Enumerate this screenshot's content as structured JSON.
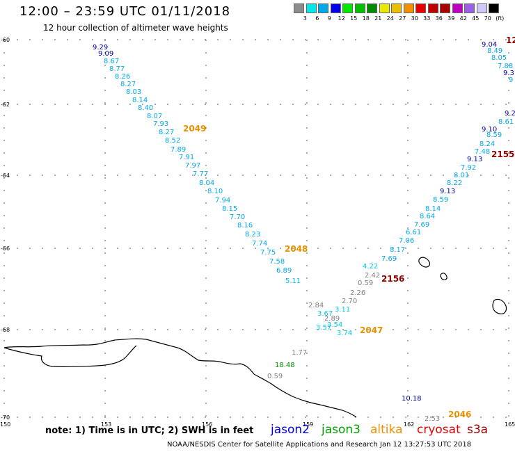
{
  "header": {
    "title": "12:00 – 23:59 UTC 01/11/2018",
    "subtitle": "12 hour collection of altimeter wave heights"
  },
  "colorbar": {
    "colors": [
      "#8c8c8c",
      "#00e8e8",
      "#00a8e8",
      "#0000e8",
      "#00e800",
      "#00c000",
      "#008c00",
      "#e8e800",
      "#e8c000",
      "#f09000",
      "#e80000",
      "#c00000",
      "#a80000",
      "#c000c0",
      "#9c60e8",
      "#d0c8f8",
      "#000000"
    ],
    "labels": [
      "3",
      "6",
      "9",
      "12",
      "15",
      "18",
      "21",
      "24",
      "27",
      "30",
      "33",
      "36",
      "39",
      "42",
      "45",
      "70",
      "(ft)"
    ]
  },
  "axes": {
    "lat_labels": [
      "-60",
      "-62",
      "-64",
      "-66",
      "-68",
      "-70"
    ],
    "lon_labels": [
      "150",
      "153",
      "156",
      "159",
      "162",
      "165"
    ]
  },
  "tracks": [
    {
      "orbit": "2049",
      "color": "#e89000"
    },
    {
      "orbit": "2048",
      "color": "#e89000"
    },
    {
      "orbit": "2047",
      "color": "#e89000"
    },
    {
      "orbit": "2046",
      "color": "#e89000"
    },
    {
      "orbit": "2156",
      "color": "#8c0000"
    },
    {
      "orbit": "2155",
      "color": "#8c0000"
    },
    {
      "orbit": "12",
      "color": "#8c0000"
    }
  ],
  "points": [
    {
      "v": "9.29",
      "c": "#0000a0"
    },
    {
      "v": "9.09",
      "c": "#0000a0"
    },
    {
      "v": "8.67",
      "c": "#00a8e8"
    },
    {
      "v": "8.77",
      "c": "#00a8e8"
    },
    {
      "v": "8.26",
      "c": "#00a8e8"
    },
    {
      "v": "8.27",
      "c": "#00a8e8"
    },
    {
      "v": "8.03",
      "c": "#00a8e8"
    },
    {
      "v": "8.14",
      "c": "#00a8e8"
    },
    {
      "v": "8.40",
      "c": "#00a8e8"
    },
    {
      "v": "8.07",
      "c": "#00a8e8"
    },
    {
      "v": "7.93",
      "c": "#00a8e8"
    },
    {
      "v": "8.27",
      "c": "#00a8e8"
    },
    {
      "v": "8.52",
      "c": "#00a8e8"
    },
    {
      "v": "7.89",
      "c": "#00a8e8"
    },
    {
      "v": "7.91",
      "c": "#00a8e8"
    },
    {
      "v": "7.97",
      "c": "#00a8e8"
    },
    {
      "v": "7.77",
      "c": "#00a8e8"
    },
    {
      "v": "8.04",
      "c": "#00a8e8"
    },
    {
      "v": "8.10",
      "c": "#00a8e8"
    },
    {
      "v": "7.94",
      "c": "#00a8e8"
    },
    {
      "v": "8.15",
      "c": "#00a8e8"
    },
    {
      "v": "7.70",
      "c": "#00a8e8"
    },
    {
      "v": "8.16",
      "c": "#00a8e8"
    },
    {
      "v": "8.23",
      "c": "#00a8e8"
    },
    {
      "v": "7.74",
      "c": "#00a8e8"
    },
    {
      "v": "7.75",
      "c": "#00a8e8"
    },
    {
      "v": "7.58",
      "c": "#00a8e8"
    },
    {
      "v": "6.89",
      "c": "#00a8e8"
    },
    {
      "v": "5.11",
      "c": "#00c0e8"
    },
    {
      "v": "2.84",
      "c": "#808080"
    },
    {
      "v": "3.67",
      "c": "#00c8e8"
    },
    {
      "v": "3.11",
      "c": "#00c8e8"
    },
    {
      "v": "2.89",
      "c": "#808080"
    },
    {
      "v": "3.54",
      "c": "#00c8e8"
    },
    {
      "v": "3.57",
      "c": "#00c8e8"
    },
    {
      "v": "3.74",
      "c": "#00c8e8"
    },
    {
      "v": "1.77",
      "c": "#808080"
    },
    {
      "v": "18.48",
      "c": "#008c00"
    },
    {
      "v": "0.59",
      "c": "#808080"
    },
    {
      "v": "9.04",
      "c": "#0000a0"
    },
    {
      "v": "8.49",
      "c": "#00a8e8"
    },
    {
      "v": "8.05",
      "c": "#00a8e8"
    },
    {
      "v": "7.88",
      "c": "#00a8e8"
    },
    {
      "v": "9.3",
      "c": "#0000a0"
    },
    {
      "v": "9",
      "c": "#00a8e8"
    },
    {
      "v": "9.2",
      "c": "#0000a0"
    },
    {
      "v": "8.61",
      "c": "#00a8e8"
    },
    {
      "v": "9.10",
      "c": "#0000a0"
    },
    {
      "v": "8.59",
      "c": "#00a8e8"
    },
    {
      "v": "8.24",
      "c": "#00a8e8"
    },
    {
      "v": "7.48",
      "c": "#00a8e8"
    },
    {
      "v": "9.13",
      "c": "#0000a0"
    },
    {
      "v": "7.92",
      "c": "#00a8e8"
    },
    {
      "v": "8.01",
      "c": "#00a8e8"
    },
    {
      "v": "8.22",
      "c": "#00a8e8"
    },
    {
      "v": "9.13",
      "c": "#0000a0"
    },
    {
      "v": "8.59",
      "c": "#00a8e8"
    },
    {
      "v": "8.14",
      "c": "#00a8e8"
    },
    {
      "v": "8.64",
      "c": "#00a8e8"
    },
    {
      "v": "7.69",
      "c": "#00a8e8"
    },
    {
      "v": "6.61",
      "c": "#00a8e8"
    },
    {
      "v": "7.06",
      "c": "#00a8e8"
    },
    {
      "v": "8.17",
      "c": "#00a8e8"
    },
    {
      "v": "7.69",
      "c": "#00a8e8"
    },
    {
      "v": "4.22",
      "c": "#00c8e8"
    },
    {
      "v": "2.42",
      "c": "#808080"
    },
    {
      "v": "0.59",
      "c": "#808080"
    },
    {
      "v": "2.26",
      "c": "#808080"
    },
    {
      "v": "2.70",
      "c": "#808080"
    },
    {
      "v": "10.18",
      "c": "#0000a0"
    },
    {
      "v": "2.53",
      "c": "#808080"
    }
  ],
  "footer": {
    "note": "note: 1) Time is in UTC; 2) SWH is in feet",
    "credit": "NOAA/NESDIS Center for Satellite Applications and Research    Jan 12 13:27:53 UTC 2018",
    "legend": [
      {
        "label": "jason2",
        "color": "#0000e8"
      },
      {
        "label": "jason3",
        "color": "#00a000"
      },
      {
        "label": "altika",
        "color": "#f09000"
      },
      {
        "label": "cryosat",
        "color": "#e00000"
      },
      {
        "label": "s3a",
        "color": "#a00000"
      }
    ]
  }
}
